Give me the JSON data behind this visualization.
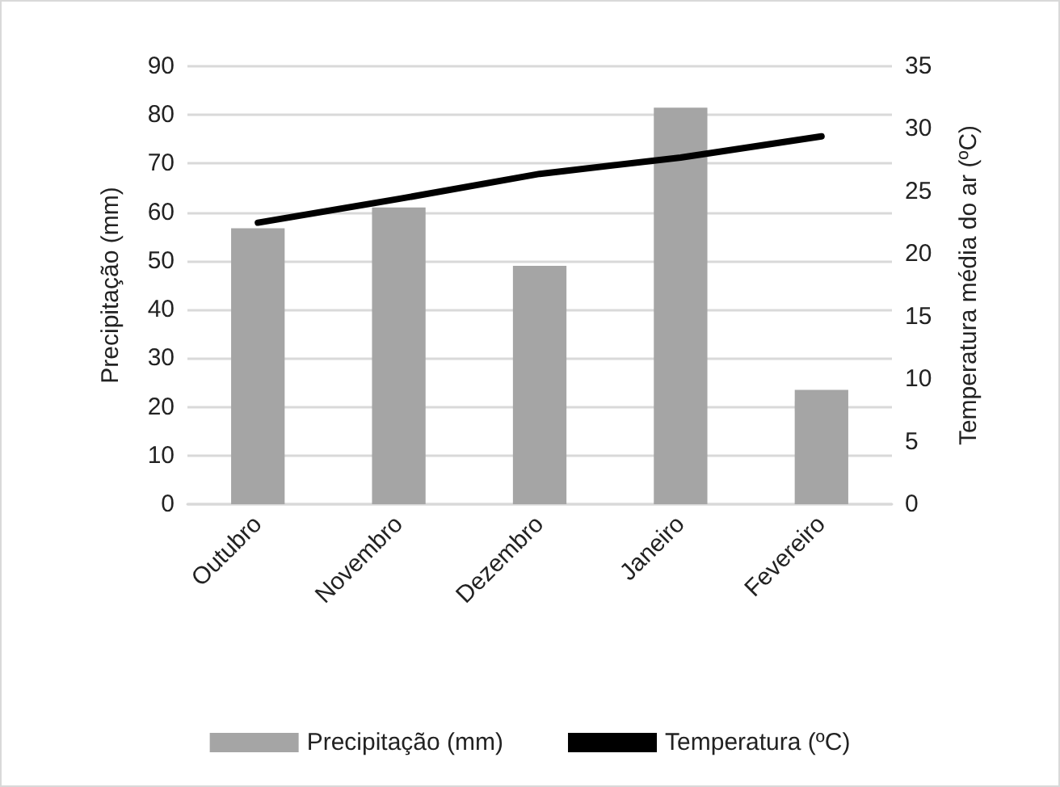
{
  "chart_data": {
    "type": "bar",
    "categories": [
      "Outubro",
      "Novembro",
      "Dezembro",
      "Janeiro",
      "Fevereiro"
    ],
    "series": [
      {
        "name": "Precipitação (mm)",
        "color": "#a5a5a5",
        "values": [
          56.7,
          61,
          49,
          81.5,
          23.5
        ]
      },
      {
        "name": "Temperatura (ºC)",
        "type": "line",
        "axis": "y2",
        "color": "#000000",
        "values": [
          22.5,
          24.4,
          26.4,
          27.7,
          29.4
        ]
      }
    ],
    "ylabel": "Precipitação (mm)",
    "y2label": "Temperatura média do ar (ºC)",
    "ylim": [
      0,
      90
    ],
    "yticks": [
      0,
      10,
      20,
      30,
      40,
      50,
      60,
      70,
      80,
      90
    ],
    "y2lim": [
      0,
      35
    ],
    "y2ticks": [
      0,
      5,
      10,
      15,
      20,
      25,
      30,
      35
    ],
    "grid": "y",
    "legend": "bottom",
    "marker": "none",
    "line_style": "solid"
  }
}
